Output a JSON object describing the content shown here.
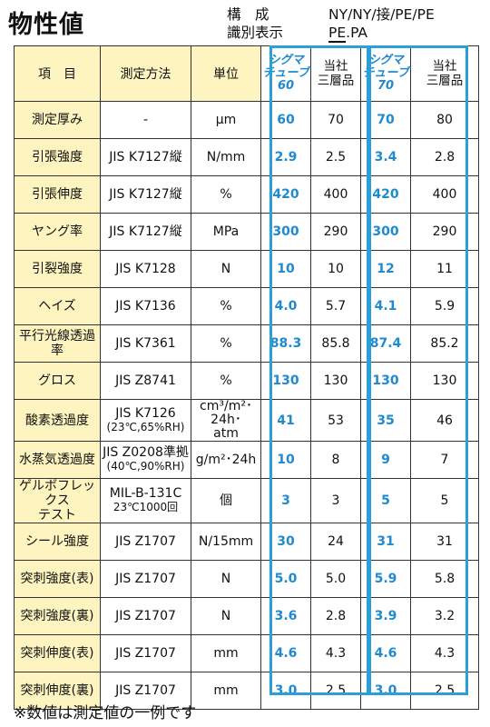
{
  "page": {
    "title": "物性値",
    "composition_label": "構　成",
    "composition_value": "NY/NY/接/PE/PE",
    "id_label": "識別表示",
    "id_value_pe": "PE",
    "id_value_rest": ".PA",
    "footnote": "※数値は測定値の一例です"
  },
  "table": {
    "headers": {
      "item": "項　目",
      "method": "測定方法",
      "unit": "単位",
      "sigma60": [
        "シグマ",
        "チューブ",
        "60"
      ],
      "company60": [
        "当社",
        "三層品"
      ],
      "sigma70": [
        "シグマ",
        "チューブ",
        "70"
      ],
      "company70": [
        "当社",
        "三層品"
      ]
    },
    "rows": [
      {
        "item": [
          "測定厚み"
        ],
        "method": [
          "-"
        ],
        "unit": [
          "μm"
        ],
        "s60": "60",
        "c60": "70",
        "s70": "70",
        "c70": "80"
      },
      {
        "item": [
          "引張強度"
        ],
        "method": [
          "JIS K7127縦"
        ],
        "unit": [
          "N/mm"
        ],
        "s60": "2.9",
        "c60": "2.5",
        "s70": "3.4",
        "c70": "2.8"
      },
      {
        "item": [
          "引張伸度"
        ],
        "method": [
          "JIS K7127縦"
        ],
        "unit": [
          "%"
        ],
        "s60": "420",
        "c60": "400",
        "s70": "420",
        "c70": "400"
      },
      {
        "item": [
          "ヤング率"
        ],
        "method": [
          "JIS K7127縦"
        ],
        "unit": [
          "MPa"
        ],
        "s60": "300",
        "c60": "290",
        "s70": "300",
        "c70": "290"
      },
      {
        "item": [
          "引裂強度"
        ],
        "method": [
          "JIS K7128"
        ],
        "unit": [
          "N"
        ],
        "s60": "10",
        "c60": "10",
        "s70": "12",
        "c70": "11"
      },
      {
        "item": [
          "ヘイズ"
        ],
        "method": [
          "JIS K7136"
        ],
        "unit": [
          "%"
        ],
        "s60": "4.0",
        "c60": "5.7",
        "s70": "4.1",
        "c70": "5.9"
      },
      {
        "item": [
          "平行光線透過率"
        ],
        "method": [
          "JIS K7361"
        ],
        "unit": [
          "%"
        ],
        "s60": "88.3",
        "c60": "85.8",
        "s70": "87.4",
        "c70": "85.2"
      },
      {
        "item": [
          "グロス"
        ],
        "method": [
          "JIS Z8741"
        ],
        "unit": [
          "%"
        ],
        "s60": "130",
        "c60": "130",
        "s70": "130",
        "c70": "130"
      },
      {
        "item": [
          "酸素透過度"
        ],
        "method": [
          "JIS K7126",
          "(23℃,65%RH)"
        ],
        "unit": [
          "cm³/m²･24h･",
          "atm"
        ],
        "s60": "41",
        "c60": "53",
        "s70": "35",
        "c70": "46"
      },
      {
        "item": [
          "水蒸気透過度"
        ],
        "method": [
          "JIS Z0208準拠",
          "(40℃,90%RH)"
        ],
        "unit": [
          "g/m²･24h"
        ],
        "s60": "10",
        "c60": "8",
        "s70": "9",
        "c70": "7"
      },
      {
        "item": [
          "ゲルボフレックス",
          "テスト"
        ],
        "method": [
          "MIL-B-131C",
          "23℃1000回"
        ],
        "unit": [
          "個"
        ],
        "s60": "3",
        "c60": "3",
        "s70": "5",
        "c70": "5"
      },
      {
        "item": [
          "シール強度"
        ],
        "method": [
          "JIS Z1707"
        ],
        "unit": [
          "N/15mm"
        ],
        "s60": "30",
        "c60": "24",
        "s70": "31",
        "c70": "31"
      },
      {
        "item": [
          "突刺強度(表)"
        ],
        "method": [
          "JIS Z1707"
        ],
        "unit": [
          "N"
        ],
        "s60": "5.0",
        "c60": "5.0",
        "s70": "5.9",
        "c70": "5.8"
      },
      {
        "item": [
          "突刺強度(裏)"
        ],
        "method": [
          "JIS Z1707"
        ],
        "unit": [
          "N"
        ],
        "s60": "3.6",
        "c60": "2.8",
        "s70": "3.9",
        "c70": "3.2"
      },
      {
        "item": [
          "突刺伸度(表)"
        ],
        "method": [
          "JIS Z1707"
        ],
        "unit": [
          "mm"
        ],
        "s60": "4.6",
        "c60": "4.3",
        "s70": "4.6",
        "c70": "4.3"
      },
      {
        "item": [
          "突刺伸度(裏)"
        ],
        "method": [
          "JIS Z1707"
        ],
        "unit": [
          "mm"
        ],
        "s60": "3.0",
        "c60": "2.5",
        "s70": "3.0",
        "c70": "2.5"
      }
    ]
  },
  "colors": {
    "accent_blue": "#1f8ad0",
    "highlight_border": "#2a9fd8",
    "label_background": "#fdf4c0"
  }
}
